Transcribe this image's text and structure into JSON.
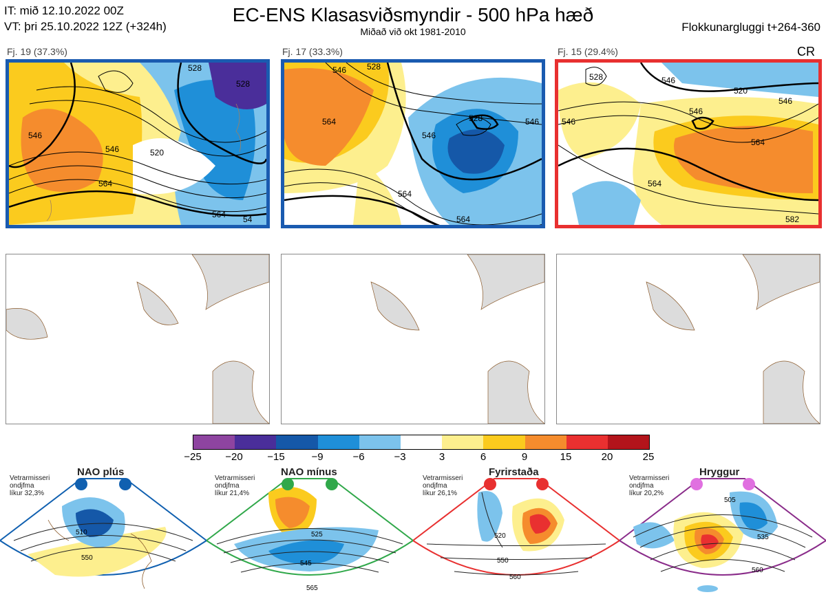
{
  "header": {
    "it_line": "IT: mið 12.10.2022 00Z",
    "vt_line": "VT: þri 25.10.2022 12Z  (+324h)",
    "title": "EC-ENS Klasasviðsmyndir - 500 hPa hæð",
    "subtitle": "Miðað við okt 1981-2010",
    "window": "Flokkunargluggi t+264-360"
  },
  "clusters": [
    {
      "label": "Fj. 19 (37.3%)",
      "frame_color": "#1a5bb0",
      "contours": [
        "546",
        "546",
        "564",
        "520",
        "528",
        "528",
        "564",
        "54"
      ]
    },
    {
      "label": "Fj. 17 (33.3%)",
      "frame_color": "#1a5bb0",
      "contours": [
        "546",
        "528",
        "528",
        "564",
        "564",
        "564",
        "546",
        "546"
      ]
    },
    {
      "label": "Fj. 15 (29.4%)",
      "frame_color": "#e83030",
      "tag": "CR",
      "contours": [
        "528",
        "546",
        "546",
        "564",
        "564",
        "546",
        "546",
        "520",
        "582"
      ]
    }
  ],
  "colorbar": {
    "labels": [
      "−25",
      "−20",
      "−15",
      "−9",
      "−6",
      "−3",
      "3",
      "6",
      "9",
      "15",
      "20",
      "25"
    ],
    "colors": [
      "#8e44a0",
      "#4a2e9a",
      "#1558a8",
      "#1f8fd8",
      "#7cc3ec",
      "#ffffff",
      "#fdef8e",
      "#fbcb1e",
      "#f58c2d",
      "#e93030",
      "#b3141b"
    ]
  },
  "regimes": [
    {
      "title": "NAO plús",
      "note": [
        "Vetrarmisseri",
        "ondjfma",
        "líkur 32,3%"
      ],
      "color": "#1060b0",
      "contours": [
        "510",
        "550"
      ]
    },
    {
      "title": "NAO mínus",
      "note": [
        "Vetrarmisseri",
        "ondjfma",
        "líkur 21,4%"
      ],
      "color": "#30a84a",
      "contours": [
        "525",
        "545",
        "565"
      ]
    },
    {
      "title": "Fyrirstaða",
      "note": [
        "Vetrarmisseri",
        "ondjfma",
        "líkur 26,1%"
      ],
      "color": "#e83030",
      "contours": [
        "520",
        "550",
        "560"
      ]
    },
    {
      "title": "Hryggur",
      "note": [
        "Vetrarmisseri",
        "ondjfma",
        "líkur 20,2%"
      ],
      "color": "#e070e0",
      "contours": [
        "505",
        "535",
        "560"
      ]
    }
  ]
}
